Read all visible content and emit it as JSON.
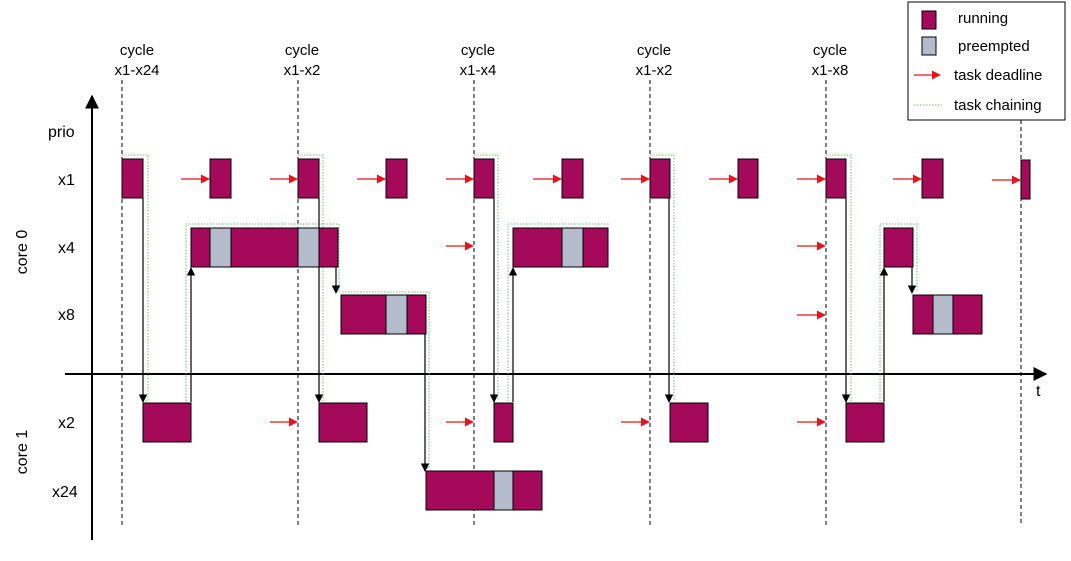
{
  "colors": {
    "running": "#a50a5a",
    "preempted": "#b4bccc",
    "deadline": "#e8141b",
    "chaining": "#6fbf6f"
  },
  "axis": {
    "y_title": "prio",
    "x_title": "t"
  },
  "cores": [
    "core 0",
    "core 1"
  ],
  "tasks": [
    "x1",
    "x4",
    "x8",
    "x2",
    "x24"
  ],
  "cycles": [
    {
      "line1": "cycle",
      "line2": "x1-x24"
    },
    {
      "line1": "cycle",
      "line2": "x1-x2"
    },
    {
      "line1": "cycle",
      "line2": "x1-x4"
    },
    {
      "line1": "cycle",
      "line2": "x1-x2"
    },
    {
      "line1": "cycle",
      "line2": "x1-x8"
    }
  ],
  "legend": {
    "running": "running",
    "preempted": "preempted",
    "deadline": "task deadline",
    "chaining": "task chaining"
  },
  "icons": {
    "running": "running-swatch",
    "preempted": "preempted-swatch",
    "deadline": "red-arrow-icon",
    "chaining": "dotted-green-line-icon"
  }
}
